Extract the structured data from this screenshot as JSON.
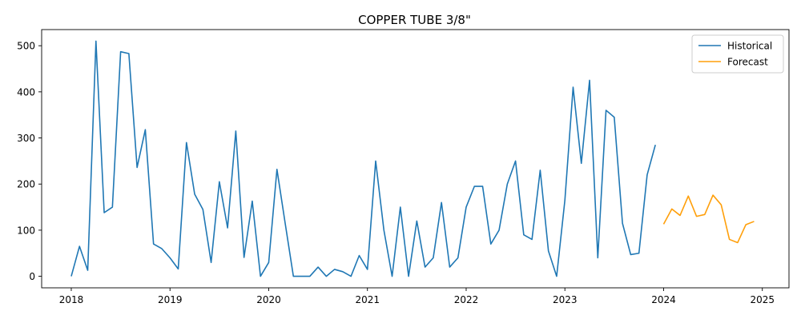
{
  "chart_data": {
    "type": "line",
    "title": "COPPER TUBE  3/8\"",
    "xlabel": "",
    "ylabel": "",
    "xlim": [
      2017.7,
      2025.27
    ],
    "ylim": [
      -25,
      535
    ],
    "x_ticks": [
      2018,
      2019,
      2020,
      2021,
      2022,
      2023,
      2024,
      2025
    ],
    "y_ticks": [
      0,
      100,
      200,
      300,
      400,
      500
    ],
    "grid": false,
    "legend_position": "top-right",
    "series": [
      {
        "name": "Historical",
        "color": "#1f77b4",
        "start": "2018-01",
        "values": [
          0,
          65,
          13,
          510,
          138,
          150,
          487,
          483,
          236,
          318,
          70,
          60,
          40,
          16,
          290,
          178,
          145,
          30,
          205,
          105,
          315,
          41,
          163,
          0,
          30,
          232,
          115,
          0,
          0,
          0,
          20,
          0,
          15,
          10,
          0,
          45,
          15,
          250,
          100,
          0,
          150,
          0,
          120,
          20,
          40,
          160,
          20,
          40,
          150,
          195,
          195,
          70,
          100,
          200,
          250,
          90,
          80,
          230,
          55,
          0,
          165,
          410,
          245,
          425,
          40,
          360,
          345,
          115,
          47,
          50,
          220,
          285
        ]
      },
      {
        "name": "Forecast",
        "color": "#ff9f0a",
        "start": "2024-01",
        "values": [
          113,
          146,
          132,
          174,
          130,
          134,
          176,
          155,
          80,
          73,
          112,
          119
        ]
      }
    ]
  }
}
